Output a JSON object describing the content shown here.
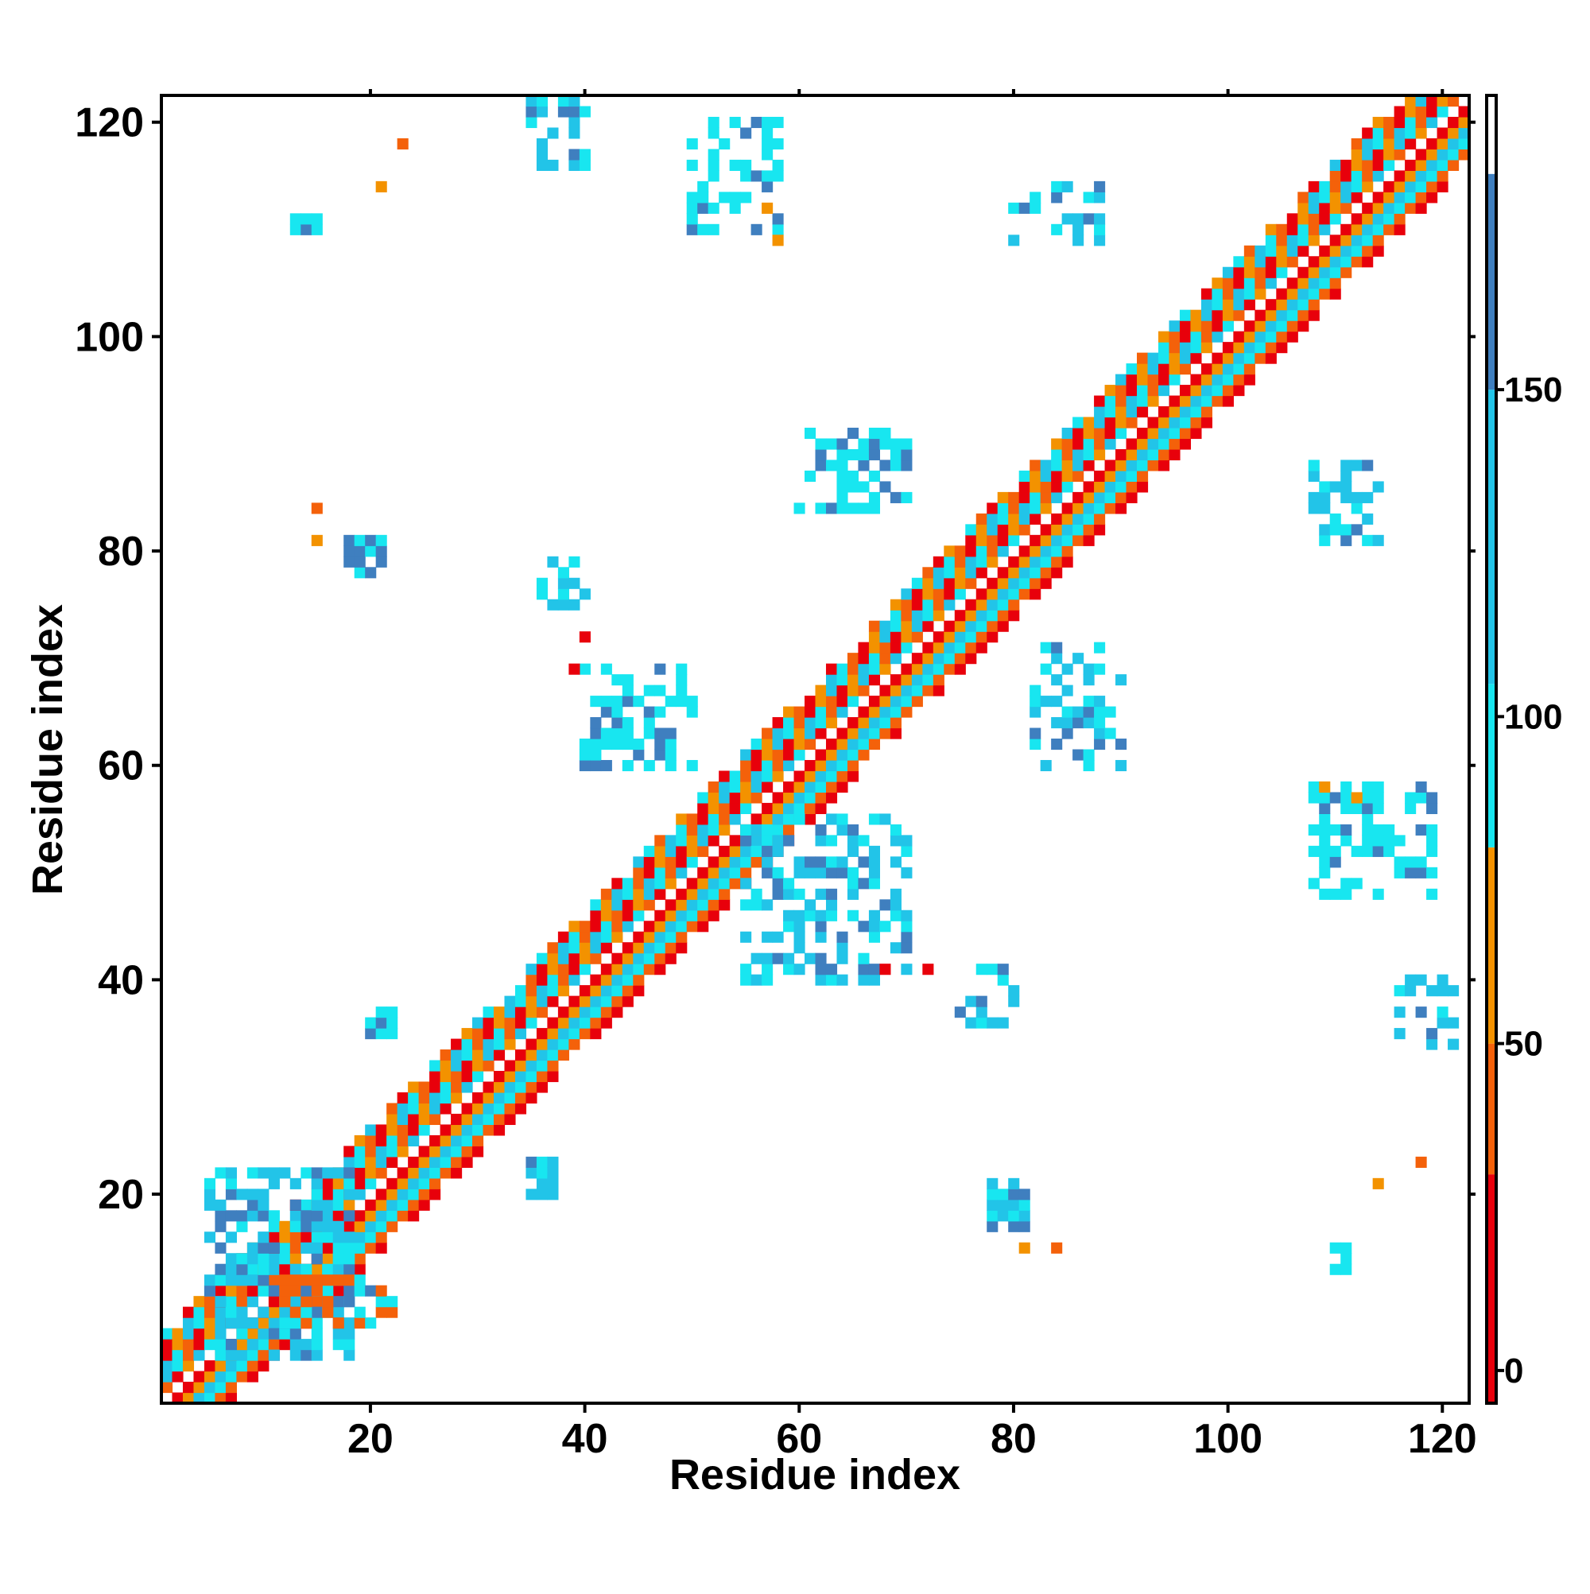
{
  "chart_data": {
    "type": "heatmap",
    "title": "",
    "xlabel": "Residue index",
    "ylabel": "Residue index",
    "xlim": [
      1,
      122
    ],
    "ylim": [
      1,
      122
    ],
    "x_ticks": [
      20,
      40,
      60,
      80,
      100,
      120
    ],
    "y_ticks": [
      20,
      40,
      60,
      80,
      100,
      120
    ],
    "x_tick_labels": [
      "20",
      "40",
      "60",
      "80",
      "100",
      "120"
    ],
    "y_tick_labels": [
      "20",
      "40",
      "60",
      "80",
      "100",
      "120"
    ],
    "colorbar": {
      "ticks": [
        0,
        50,
        100,
        150
      ],
      "tick_labels": [
        "0",
        "50",
        "100",
        "150"
      ],
      "range": [
        -5,
        195
      ],
      "bands": [
        {
          "from": -5,
          "to": 30,
          "color": "#e8000b"
        },
        {
          "from": 30,
          "to": 50,
          "color": "#f4610a"
        },
        {
          "from": 50,
          "to": 80,
          "color": "#f39200"
        },
        {
          "from": 80,
          "to": 105,
          "color": "#18e6f0"
        },
        {
          "from": 105,
          "to": 150,
          "color": "#22c4e8"
        },
        {
          "from": 150,
          "to": 183,
          "color": "#3f7fbf"
        },
        {
          "from": 183,
          "to": 195,
          "color": "#ffffff"
        }
      ]
    },
    "diagonal_band": {
      "half_width": 6,
      "pattern_colors": [
        "#f4610a",
        "#f39200",
        "#18e6f0",
        "#e8000b",
        "#22c4e8"
      ]
    },
    "clusters": [
      {
        "x": [
          5,
          18
        ],
        "y": [
          5,
          22
        ],
        "color": "#22c4e8",
        "density": 0.55
      },
      {
        "x": [
          12,
          22
        ],
        "y": [
          8,
          12
        ],
        "color": "#f4610a",
        "density": 0.6
      },
      {
        "x": [
          18,
          21
        ],
        "y": [
          78,
          81
        ],
        "color": "#3f7fbf",
        "density": 0.8
      },
      {
        "x": [
          20,
          22
        ],
        "y": [
          35,
          37
        ],
        "color": "#18e6f0",
        "density": 0.9
      },
      {
        "x": [
          35,
          37
        ],
        "y": [
          20,
          23
        ],
        "color": "#22c4e8",
        "density": 0.9
      },
      {
        "x": [
          35,
          40
        ],
        "y": [
          116,
          122
        ],
        "color": "#22c4e8",
        "density": 0.5
      },
      {
        "x": [
          36,
          40
        ],
        "y": [
          75,
          79
        ],
        "color": "#22c4e8",
        "density": 0.5
      },
      {
        "x": [
          40,
          50
        ],
        "y": [
          60,
          69
        ],
        "color": "#18e6f0",
        "density": 0.45
      },
      {
        "x": [
          50,
          58
        ],
        "y": [
          110,
          120
        ],
        "color": "#18e6f0",
        "density": 0.45
      },
      {
        "x": [
          55,
          70
        ],
        "y": [
          40,
          55
        ],
        "color": "#22c4e8",
        "density": 0.45
      },
      {
        "x": [
          60,
          70
        ],
        "y": [
          84,
          91
        ],
        "color": "#18e6f0",
        "density": 0.4
      },
      {
        "x": [
          75,
          80
        ],
        "y": [
          36,
          41
        ],
        "color": "#22c4e8",
        "density": 0.5
      },
      {
        "x": [
          78,
          81
        ],
        "y": [
          17,
          21
        ],
        "color": "#22c4e8",
        "density": 0.8
      },
      {
        "x": [
          82,
          90
        ],
        "y": [
          60,
          71
        ],
        "color": "#22c4e8",
        "density": 0.4
      },
      {
        "x": [
          80,
          88
        ],
        "y": [
          109,
          114
        ],
        "color": "#22c4e8",
        "density": 0.45
      },
      {
        "x": [
          108,
          114
        ],
        "y": [
          81,
          88
        ],
        "color": "#22c4e8",
        "density": 0.45
      },
      {
        "x": [
          108,
          119
        ],
        "y": [
          48,
          58
        ],
        "color": "#18e6f0",
        "density": 0.45
      },
      {
        "x": [
          116,
          121
        ],
        "y": [
          34,
          40
        ],
        "color": "#22c4e8",
        "density": 0.45
      },
      {
        "x": [
          110,
          111
        ],
        "y": [
          13,
          15
        ],
        "color": "#22c4e8",
        "density": 0.9
      },
      {
        "x": [
          13,
          15
        ],
        "y": [
          110,
          111
        ],
        "color": "#18e6f0",
        "density": 0.9
      }
    ],
    "points": [
      {
        "x": 23,
        "y": 118,
        "color": "#f4610a"
      },
      {
        "x": 21,
        "y": 114,
        "color": "#f39200"
      },
      {
        "x": 15,
        "y": 84,
        "color": "#f4610a"
      },
      {
        "x": 15,
        "y": 81,
        "color": "#f39200"
      },
      {
        "x": 40,
        "y": 72,
        "color": "#e8000b"
      },
      {
        "x": 39,
        "y": 69,
        "color": "#e8000b"
      },
      {
        "x": 68,
        "y": 41,
        "color": "#e8000b"
      },
      {
        "x": 72,
        "y": 41,
        "color": "#e8000b"
      },
      {
        "x": 84,
        "y": 15,
        "color": "#f4610a"
      },
      {
        "x": 81,
        "y": 15,
        "color": "#f39200"
      },
      {
        "x": 118,
        "y": 23,
        "color": "#f4610a"
      },
      {
        "x": 114,
        "y": 21,
        "color": "#f39200"
      },
      {
        "x": 109,
        "y": 58,
        "color": "#f39200"
      },
      {
        "x": 112,
        "y": 57,
        "color": "#f39200"
      },
      {
        "x": 58,
        "y": 109,
        "color": "#f39200"
      },
      {
        "x": 57,
        "y": 112,
        "color": "#f39200"
      }
    ]
  }
}
